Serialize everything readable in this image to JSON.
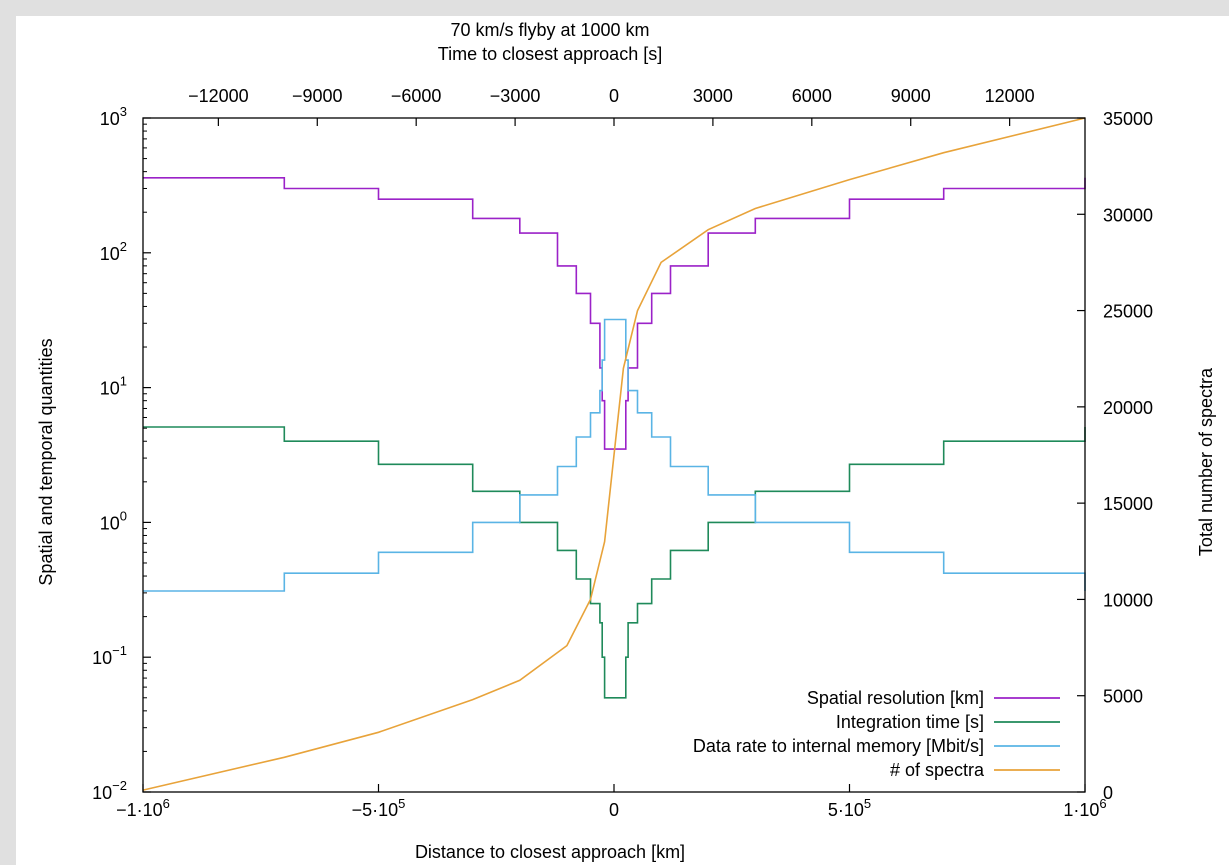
{
  "chart_data": {
    "type": "line",
    "title": "70 km/s flyby at 1000 km",
    "x_axis": {
      "label": "Distance to closest approach [km]",
      "range": [
        -1000000,
        1000000
      ],
      "ticks": [
        {
          "value": -1000000,
          "mantissa": "−1·10",
          "exp": "6"
        },
        {
          "value": -500000,
          "mantissa": "−5·10",
          "exp": "5"
        },
        {
          "value": 0,
          "mantissa": "0",
          "exp": ""
        },
        {
          "value": 500000,
          "mantissa": "5·10",
          "exp": "5"
        },
        {
          "value": 1000000,
          "mantissa": "1·10",
          "exp": "6"
        }
      ]
    },
    "x2_axis": {
      "label": "Time to closest approach [s]",
      "range": [
        -14286,
        14286
      ],
      "ticks": [
        {
          "value": -12000,
          "label": "−12000"
        },
        {
          "value": -9000,
          "label": "−9000"
        },
        {
          "value": -6000,
          "label": "−6000"
        },
        {
          "value": -3000,
          "label": "−3000"
        },
        {
          "value": 0,
          "label": "0"
        },
        {
          "value": 3000,
          "label": "3000"
        },
        {
          "value": 6000,
          "label": "6000"
        },
        {
          "value": 9000,
          "label": "9000"
        },
        {
          "value": 12000,
          "label": "12000"
        }
      ]
    },
    "y_axis": {
      "label": "Spatial and temporal quantities",
      "scale": "log",
      "range": [
        0.01,
        1000
      ],
      "ticks": [
        {
          "value": 0.01,
          "base": "10",
          "exp": "−2"
        },
        {
          "value": 0.1,
          "base": "10",
          "exp": "−1"
        },
        {
          "value": 1,
          "base": "10",
          "exp": "0"
        },
        {
          "value": 10,
          "base": "10",
          "exp": "1"
        },
        {
          "value": 100,
          "base": "10",
          "exp": "2"
        },
        {
          "value": 1000,
          "base": "10",
          "exp": "3"
        }
      ]
    },
    "y2_axis": {
      "label": "Total number of spectra",
      "scale": "linear",
      "range": [
        0,
        35000
      ],
      "ticks": [
        {
          "value": 0,
          "label": "0"
        },
        {
          "value": 5000,
          "label": "5000"
        },
        {
          "value": 10000,
          "label": "10000"
        },
        {
          "value": 15000,
          "label": "15000"
        },
        {
          "value": 20000,
          "label": "20000"
        },
        {
          "value": 25000,
          "label": "25000"
        },
        {
          "value": 30000,
          "label": "30000"
        },
        {
          "value": 35000,
          "label": "35000"
        }
      ]
    },
    "grid": false,
    "legend_position": "bottom-right",
    "series": [
      {
        "name": "Spatial resolution [km]",
        "color": "#9b22c8",
        "axis": "y",
        "step": true,
        "x": [
          -1000000,
          -700000,
          -500000,
          -300000,
          -200000,
          -120000,
          -80000,
          -50000,
          -30000,
          -25000,
          -20000,
          20000,
          25000,
          30000,
          50000,
          80000,
          120000,
          200000,
          300000,
          500000,
          700000,
          1000000
        ],
        "y": [
          360,
          300,
          250,
          180,
          140,
          80,
          50,
          30,
          14,
          8,
          3.5,
          3.5,
          8,
          14,
          30,
          50,
          80,
          140,
          180,
          250,
          300,
          360
        ]
      },
      {
        "name": "Integration time [s]",
        "color": "#1f8a5a",
        "axis": "y",
        "step": true,
        "x": [
          -1000000,
          -700000,
          -500000,
          -300000,
          -200000,
          -120000,
          -80000,
          -50000,
          -30000,
          -25000,
          -20000,
          20000,
          25000,
          30000,
          50000,
          80000,
          120000,
          200000,
          300000,
          500000,
          700000,
          1000000
        ],
        "y": [
          5.1,
          4,
          2.7,
          1.7,
          1.0,
          0.62,
          0.38,
          0.25,
          0.18,
          0.1,
          0.05,
          0.05,
          0.1,
          0.18,
          0.25,
          0.38,
          0.62,
          1.0,
          1.7,
          2.7,
          4,
          5.1
        ]
      },
      {
        "name": "Data rate to internal memory [Mbit/s]",
        "color": "#5ab4e5",
        "axis": "y",
        "step": true,
        "x": [
          -1000000,
          -700000,
          -500000,
          -300000,
          -200000,
          -120000,
          -80000,
          -50000,
          -30000,
          -25000,
          -20000,
          20000,
          25000,
          30000,
          50000,
          80000,
          120000,
          200000,
          300000,
          500000,
          700000,
          1000000
        ],
        "y": [
          0.31,
          0.42,
          0.6,
          1.0,
          1.6,
          2.6,
          4.3,
          6.5,
          9.5,
          16,
          32,
          32,
          16,
          9.5,
          6.5,
          4.3,
          2.6,
          1.6,
          1.0,
          0.6,
          0.42,
          0.31
        ]
      },
      {
        "name": "# of spectra",
        "color": "#e8a33a",
        "axis": "y2",
        "step": false,
        "x": [
          -1000000,
          -700000,
          -500000,
          -300000,
          -200000,
          -100000,
          -50000,
          -20000,
          0,
          20000,
          50000,
          100000,
          200000,
          300000,
          500000,
          700000,
          1000000
        ],
        "y": [
          100,
          1800,
          3100,
          4800,
          5800,
          7600,
          10000,
          13000,
          17500,
          22000,
          25000,
          27500,
          29200,
          30300,
          31800,
          33200,
          35000
        ]
      }
    ]
  }
}
